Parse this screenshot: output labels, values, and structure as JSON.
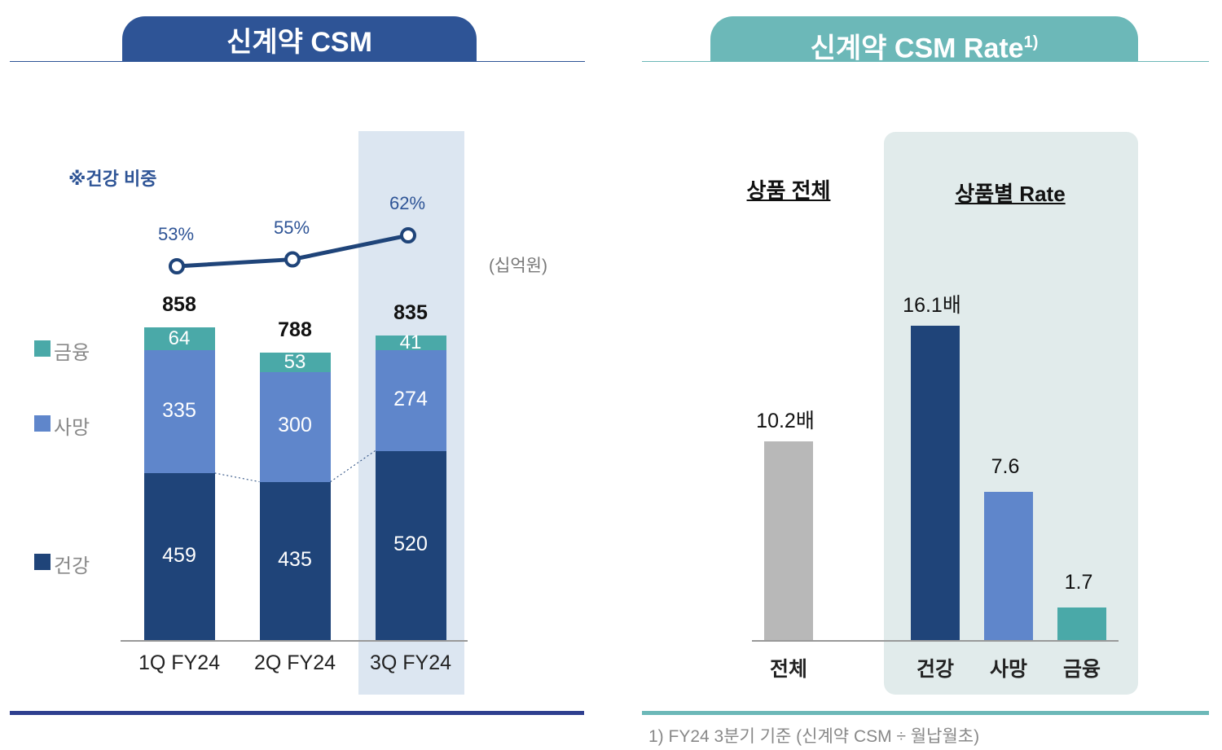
{
  "left_panel": {
    "title": "신계약 CSM",
    "note": "※건강 비중",
    "unit": "(십억원)",
    "header_color": "#2e5496"
  },
  "right_panel": {
    "title": "신계약 CSM Rate",
    "title_sup": "1)",
    "group_all": "상품 전체",
    "group_by_product": "상품별 Rate",
    "footnote": "1) FY24 3분기 기준 (신계약 CSM ÷ 월납월초)",
    "header_color": "#6cb8b8"
  },
  "chart_data": [
    {
      "type": "bar",
      "stacked": true,
      "categories": [
        "1Q FY24",
        "2Q FY24",
        "3Q FY24"
      ],
      "highlight_category": "3Q FY24",
      "unit": "(십억원)",
      "series": [
        {
          "name": "건강",
          "values": [
            459,
            435,
            520
          ],
          "color": "#1f4479"
        },
        {
          "name": "사망",
          "values": [
            335,
            300,
            274
          ],
          "color": "#5f86cb"
        },
        {
          "name": "금융",
          "values": [
            64,
            53,
            41
          ],
          "color": "#4aa9a8"
        }
      ],
      "totals": [
        "858",
        "788",
        "835"
      ],
      "labels": {
        "건강": [
          "459",
          "435",
          "520"
        ],
        "사망": [
          "335",
          "300",
          "274"
        ],
        "금융": [
          "64",
          "53",
          "41"
        ]
      },
      "legend_position": "left",
      "overlay_line": {
        "name": "※건강 비중",
        "values": [
          53,
          55,
          62
        ],
        "labels": [
          "53%",
          "55%",
          "62%"
        ],
        "color": "#1f4479"
      }
    },
    {
      "type": "bar",
      "categories": [
        "전체",
        "건강",
        "사망",
        "금융"
      ],
      "values": [
        10.2,
        16.1,
        7.6,
        1.7
      ],
      "labels": [
        "10.2배",
        "16.1배",
        "7.6",
        "1.7"
      ],
      "colors": [
        "#b8b8b8",
        "#1f4479",
        "#5f86cb",
        "#4aa9a8"
      ]
    }
  ]
}
